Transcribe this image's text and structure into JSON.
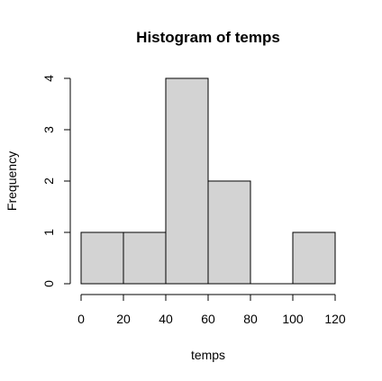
{
  "chart_data": {
    "type": "bar",
    "title": "Histogram of temps",
    "xlabel": "temps",
    "ylabel": "Frequency",
    "bins": [
      {
        "start": 0,
        "end": 20,
        "count": 1
      },
      {
        "start": 20,
        "end": 40,
        "count": 1
      },
      {
        "start": 40,
        "end": 60,
        "count": 4
      },
      {
        "start": 60,
        "end": 80,
        "count": 2
      },
      {
        "start": 80,
        "end": 100,
        "count": 0
      },
      {
        "start": 100,
        "end": 120,
        "count": 1
      }
    ],
    "x_ticks": [
      0,
      20,
      40,
      60,
      80,
      100,
      120
    ],
    "y_ticks": [
      0,
      1,
      2,
      3,
      4
    ],
    "xlim": [
      0,
      120
    ],
    "ylim": [
      0,
      4
    ],
    "bar_color": "#d3d3d3",
    "grid": false
  }
}
